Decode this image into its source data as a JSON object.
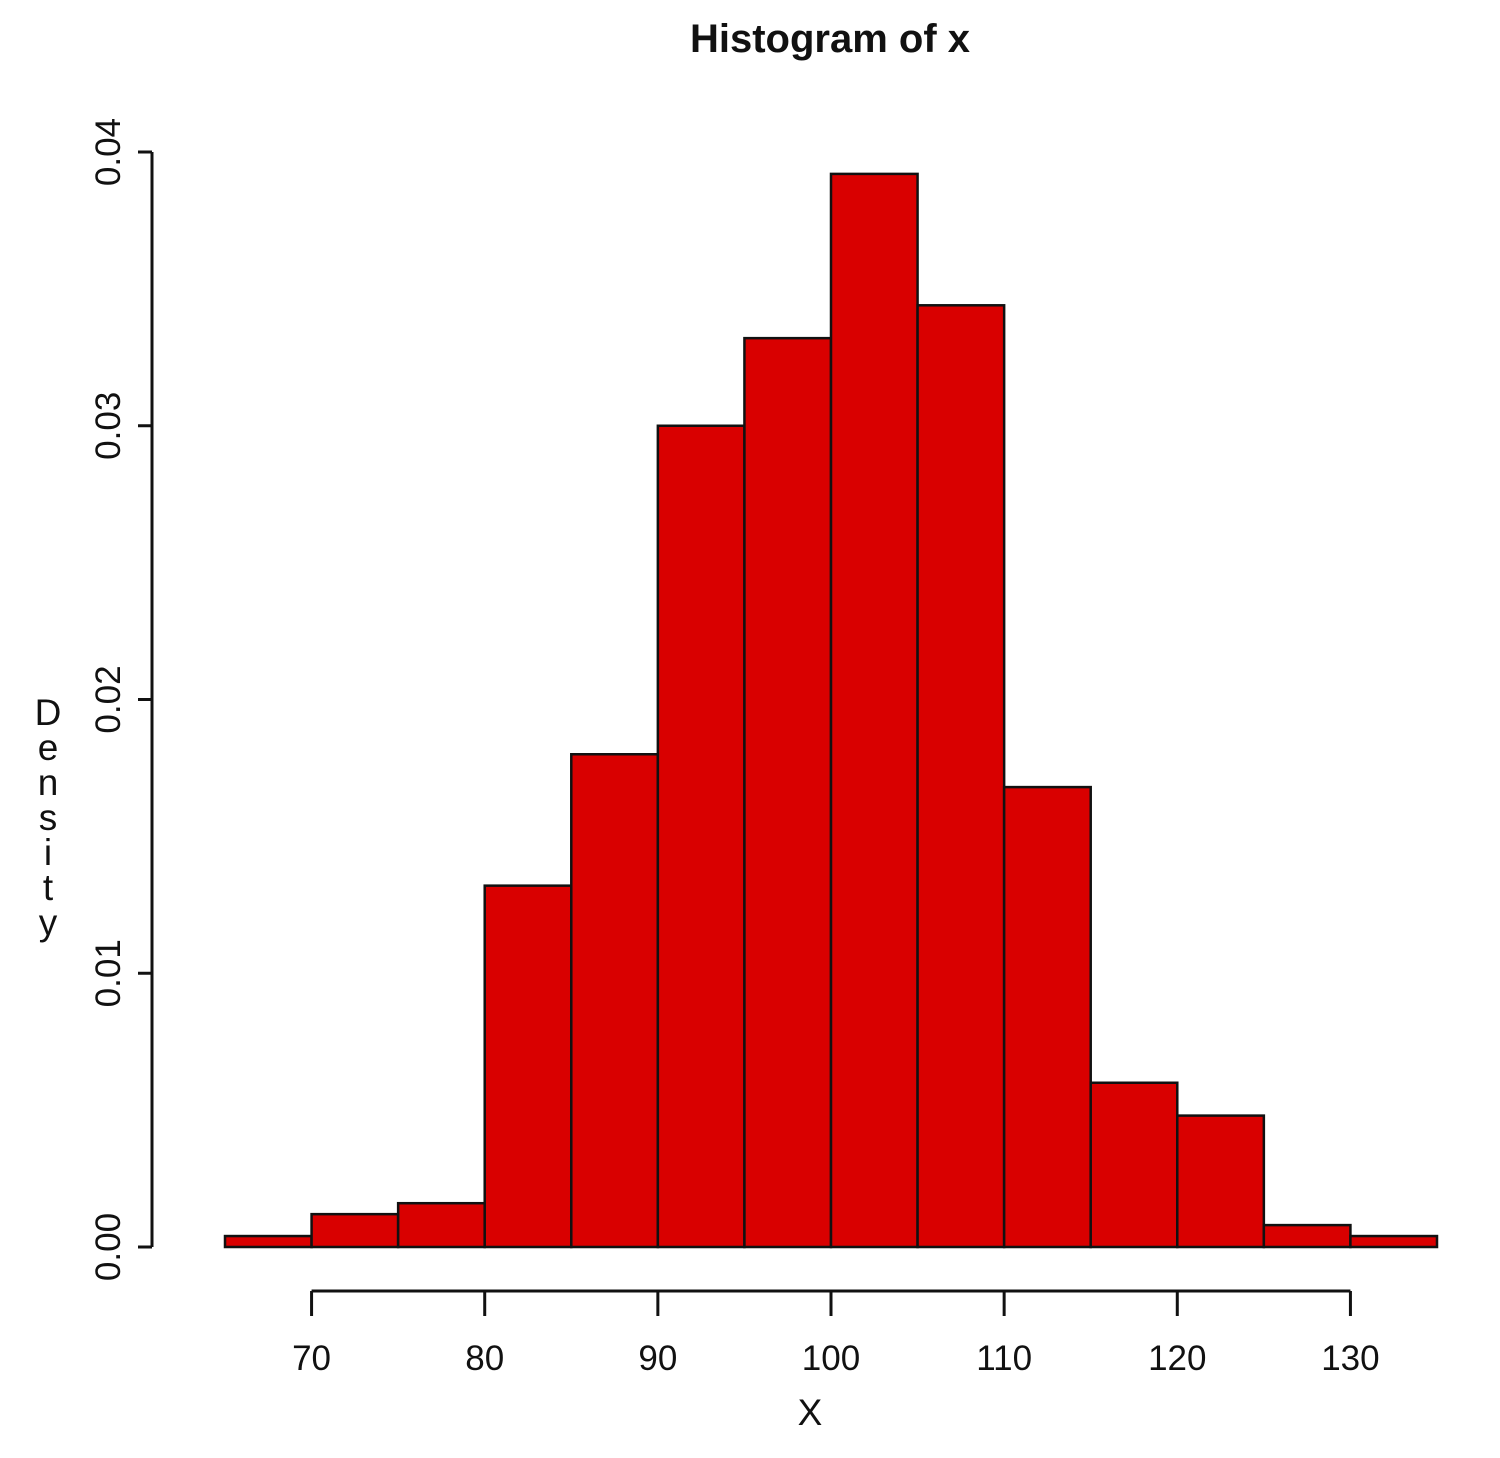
{
  "chart_data": {
    "type": "bar",
    "subtype": "histogram",
    "title": "Histogram of x",
    "xlabel": "X",
    "ylabel": "Density",
    "xlim": [
      65,
      135
    ],
    "ylim": [
      0,
      0.04
    ],
    "x_ticks": [
      "70",
      "80",
      "90",
      "100",
      "110",
      "120",
      "130"
    ],
    "y_ticks": [
      "0.00",
      "0.01",
      "0.02",
      "0.03",
      "0.04"
    ],
    "bins": [
      {
        "start": 65,
        "end": 70,
        "value": 0.0004
      },
      {
        "start": 70,
        "end": 75,
        "value": 0.0012
      },
      {
        "start": 75,
        "end": 80,
        "value": 0.0016
      },
      {
        "start": 80,
        "end": 85,
        "value": 0.0132
      },
      {
        "start": 85,
        "end": 90,
        "value": 0.018
      },
      {
        "start": 90,
        "end": 95,
        "value": 0.03
      },
      {
        "start": 95,
        "end": 100,
        "value": 0.0332
      },
      {
        "start": 100,
        "end": 105,
        "value": 0.0392
      },
      {
        "start": 105,
        "end": 110,
        "value": 0.0344
      },
      {
        "start": 110,
        "end": 115,
        "value": 0.0168
      },
      {
        "start": 115,
        "end": 120,
        "value": 0.006
      },
      {
        "start": 120,
        "end": 125,
        "value": 0.0048
      },
      {
        "start": 125,
        "end": 130,
        "value": 0.0008
      },
      {
        "start": 130,
        "end": 135,
        "value": 0.0004
      }
    ],
    "bar_color": "#d90000",
    "border_color": "#111111",
    "grid": false,
    "legend": "none"
  }
}
